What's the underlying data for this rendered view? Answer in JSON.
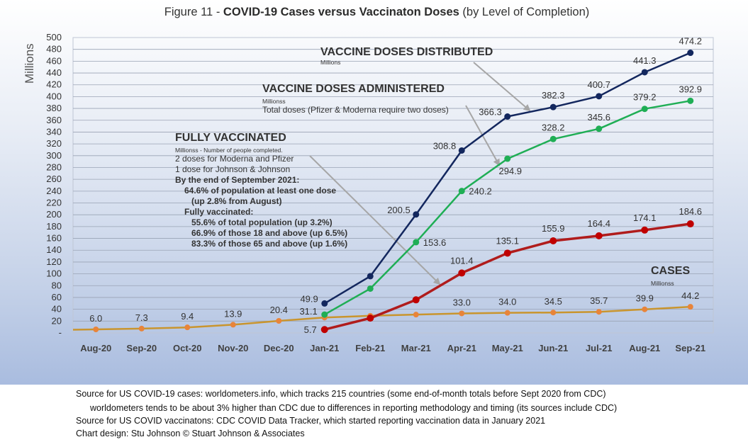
{
  "title": {
    "prefix": "Figure 11 - ",
    "main": "COVID-19 Cases versus Vaccinaton Doses",
    "suffix": " (by Level of Completion)"
  },
  "annotations": {
    "distributed": {
      "title": "VACCINE DOSES DISTRIBUTED",
      "unit": "Millions"
    },
    "administered": {
      "title": "VACCINE DOSES ADMINISTERED",
      "unit": "Millionss",
      "note": "Total doses (Pfizer & Moderna require two doses)"
    },
    "fully": {
      "title": "FULLY VACCINATED",
      "unit": "Millionss - Number of people completed.",
      "line1": "2 doses for Moderna and Pfizer",
      "line2": "1 dose for Johnson & Johnson",
      "line3": "By the end of September 2021:",
      "line4": "64.6% of population at least one dose",
      "line5": "(up 2.8% from August)",
      "line6": "Fully vaccinated:",
      "line7": "55.6% of total population (up 3.2%)",
      "line8": "66.9% of those 18 and above (up 6.5%)",
      "line9": "83.3% of those 65 and above (up 1.6%)"
    },
    "cases": {
      "title": "CASES",
      "unit": "Millionss"
    }
  },
  "footer": {
    "line1": "Source for US COVID-19 cases: worldometers.info, which tracks 215 countries  (some end-of-month totals before Sept 2020 from CDC)",
    "line2": "worldometers tends to be about 3% higher than CDC due to differences in reporting methodology and timing (its sources include CDC)",
    "line3": "Source for US COVID vaccinatons: CDC COVID Data Tracker, which started reporting vaccination data in January 2021",
    "line4": "Chart design: Stu Johnson © Stuart Johnson & Associates"
  },
  "chart_data": {
    "type": "line",
    "ylabel": "Millions",
    "ylim": [
      0,
      500
    ],
    "ytick_step": 20,
    "yticks": [
      "-",
      "20",
      "40",
      "60",
      "80",
      "100",
      "120",
      "140",
      "160",
      "180",
      "200",
      "220",
      "240",
      "260",
      "280",
      "300",
      "320",
      "340",
      "360",
      "380",
      "400",
      "420",
      "440",
      "460",
      "480",
      "500"
    ],
    "grid": true,
    "categories": [
      "Aug-20",
      "Sep-20",
      "Oct-20",
      "Nov-20",
      "Dec-20",
      "Jan-21",
      "Feb-21",
      "Mar-21",
      "Apr-21",
      "May-21",
      "Jun-21",
      "Jul-21",
      "Aug-21",
      "Sep-21"
    ],
    "series": [
      {
        "key": "cases",
        "color": "#c9952e",
        "marker": "#e8843a",
        "values": [
          6.0,
          7.3,
          9.4,
          13.9,
          20.4,
          26.0,
          29.0,
          31.0,
          33.0,
          34.0,
          34.5,
          35.7,
          39.9,
          44.2
        ],
        "labels": [
          "6.0",
          "7.3",
          "9.4",
          "13.9",
          "20.4",
          "",
          "",
          "",
          "33.0",
          "34.0",
          "34.5",
          "35.7",
          "39.9",
          "44.2"
        ]
      },
      {
        "key": "distributed",
        "color": "#13275e",
        "marker": "#13275e",
        "values": [
          null,
          null,
          null,
          null,
          null,
          49.9,
          96.0,
          200.5,
          308.8,
          366.3,
          382.3,
          400.7,
          441.3,
          474.2
        ],
        "labels": [
          "",
          "",
          "",
          "",
          "",
          "49.9",
          "",
          "200.5",
          "308.8",
          "366.3",
          "382.3",
          "400.7",
          "441.3",
          "474.2"
        ]
      },
      {
        "key": "administered",
        "color": "#1fae55",
        "marker": "#1fae55",
        "values": [
          null,
          null,
          null,
          null,
          null,
          31.1,
          75.0,
          153.6,
          240.2,
          294.9,
          328.2,
          345.6,
          379.2,
          392.9
        ],
        "labels": [
          "",
          "",
          "",
          "",
          "",
          "31.1",
          "",
          "153.6",
          "240.2",
          "294.9",
          "328.2",
          "345.6",
          "379.2",
          "392.9"
        ]
      },
      {
        "key": "fully",
        "color": "#b01c1c",
        "marker": "#c00000",
        "values": [
          null,
          null,
          null,
          null,
          null,
          5.7,
          25.0,
          56.0,
          101.4,
          135.1,
          155.9,
          164.4,
          174.1,
          184.6
        ],
        "labels": [
          "",
          "",
          "",
          "",
          "",
          "5.7",
          "",
          "",
          "101.4",
          "135.1",
          "155.9",
          "164.4",
          "174.1",
          "184.6"
        ]
      }
    ]
  }
}
